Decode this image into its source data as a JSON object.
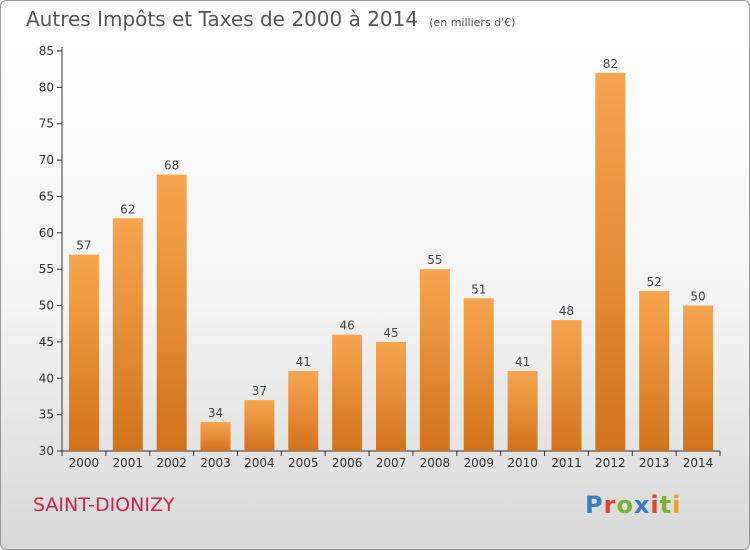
{
  "header": {
    "title": "Autres Impôts et Taxes de 2000 à 2014",
    "subtitle": "(en milliers d'€)"
  },
  "footer": {
    "commune": "SAINT-DIONIZY",
    "logo_text": "Proxiti"
  },
  "colors": {
    "bar_top": "#f7a54f",
    "bar_bottom": "#d2741c",
    "axis": "#333333",
    "grid": "#dddddd",
    "commune_text": "#c8264f",
    "logo_letters": [
      "#3a7cc8",
      "#e0452b",
      "#7ab335",
      "#3a7cc8",
      "#e0452b",
      "#7ab335",
      "#e8a21e"
    ]
  },
  "chart_data": {
    "type": "bar",
    "title": "Autres Impôts et Taxes de 2000 à 2014",
    "subtitle": "(en milliers d'€)",
    "xlabel": "",
    "ylabel": "",
    "categories": [
      "2000",
      "2001",
      "2002",
      "2003",
      "2004",
      "2005",
      "2006",
      "2007",
      "2008",
      "2009",
      "2010",
      "2011",
      "2012",
      "2013",
      "2014"
    ],
    "values": [
      57,
      62,
      68,
      34,
      37,
      41,
      46,
      45,
      55,
      51,
      41,
      48,
      82,
      52,
      50
    ],
    "ylim": [
      30,
      85
    ],
    "yticks": [
      30,
      35,
      40,
      45,
      50,
      55,
      60,
      65,
      70,
      75,
      80,
      85
    ],
    "grid": false,
    "data_labels": true
  }
}
